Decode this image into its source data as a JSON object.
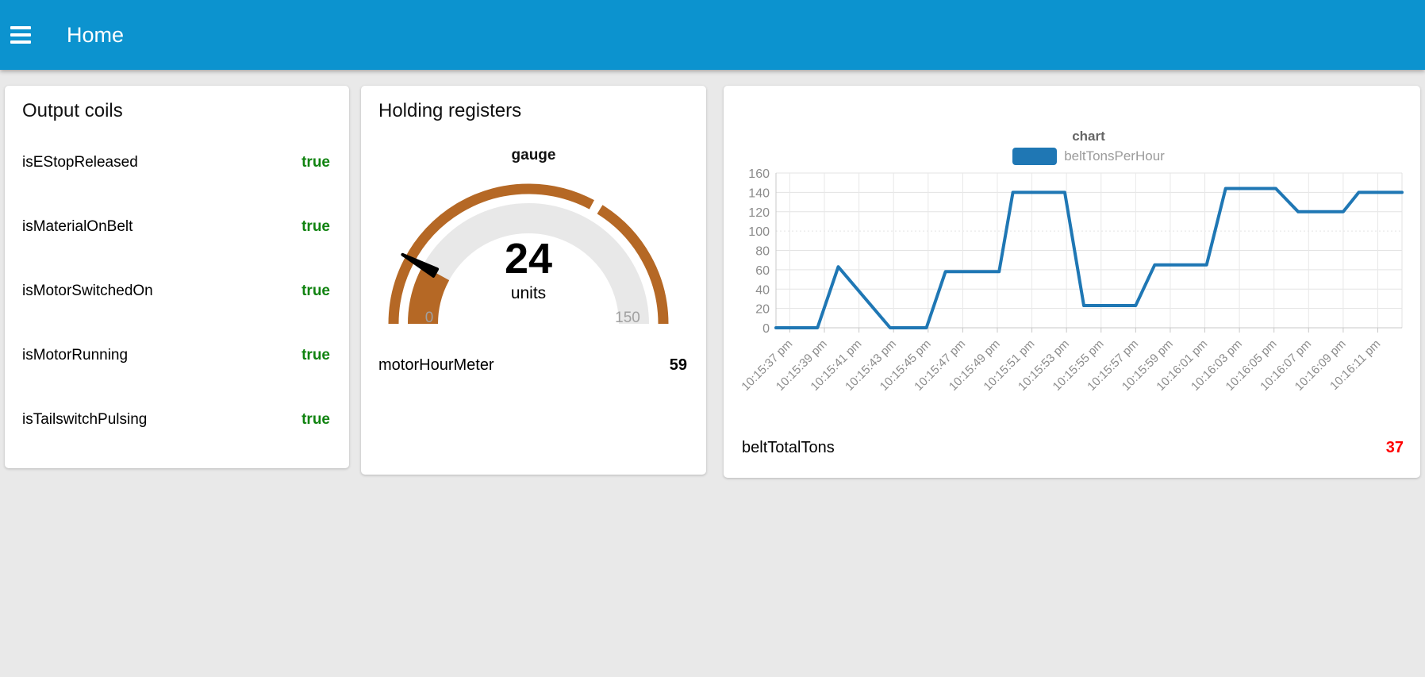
{
  "topbar": {
    "title": "Home",
    "color": "#0c93cf"
  },
  "cards": {
    "output_coils": {
      "title": "Output coils",
      "value_color": "#108310",
      "rows": [
        {
          "label": "isEStopReleased",
          "value": "true"
        },
        {
          "label": "isMaterialOnBelt",
          "value": "true"
        },
        {
          "label": "isMotorSwitchedOn",
          "value": "true"
        },
        {
          "label": "isMotorRunning",
          "value": "true"
        },
        {
          "label": "isTailswitchPulsing",
          "value": "true"
        }
      ]
    },
    "holding_registers": {
      "title": "Holding registers",
      "gauge": {
        "title": "gauge",
        "value": 24,
        "value_display": "24",
        "units": "units",
        "min": 0,
        "max": 150,
        "min_label": "0",
        "max_label": "150",
        "separator_value": 100,
        "arc_color": "#b56825",
        "track_color": "#e8e8e8",
        "needle_color": "#000000"
      },
      "rows": [
        {
          "label": "motorHourMeter",
          "value": "59"
        }
      ]
    },
    "chart_card": {
      "title": "chart",
      "legend": [
        {
          "label": "beltTonsPerHour",
          "color": "#1f77b4"
        }
      ],
      "rows": [
        {
          "label": "beltTotalTons",
          "value": "37",
          "value_color": "#ff0000"
        }
      ]
    }
  },
  "chart_data": {
    "type": "line",
    "title": "chart",
    "legend_position": "top",
    "grid": true,
    "ylim": [
      0,
      160
    ],
    "y_ticks": [
      0,
      20,
      40,
      60,
      80,
      100,
      120,
      140,
      160
    ],
    "xlim_seconds": [
      -0.8,
      35.4
    ],
    "x_ticks": [
      {
        "t": 0,
        "label": "10:15:37 pm"
      },
      {
        "t": 2,
        "label": "10:15:39 pm"
      },
      {
        "t": 4,
        "label": "10:15:41 pm"
      },
      {
        "t": 6,
        "label": "10:15:43 pm"
      },
      {
        "t": 8,
        "label": "10:15:45 pm"
      },
      {
        "t": 10,
        "label": "10:15:47 pm"
      },
      {
        "t": 12,
        "label": "10:15:49 pm"
      },
      {
        "t": 14,
        "label": "10:15:51 pm"
      },
      {
        "t": 16,
        "label": "10:15:53 pm"
      },
      {
        "t": 18,
        "label": "10:15:55 pm"
      },
      {
        "t": 20,
        "label": "10:15:57 pm"
      },
      {
        "t": 22,
        "label": "10:15:59 pm"
      },
      {
        "t": 24,
        "label": "10:16:01 pm"
      },
      {
        "t": 26,
        "label": "10:16:03 pm"
      },
      {
        "t": 28,
        "label": "10:16:05 pm"
      },
      {
        "t": 30,
        "label": "10:16:07 pm"
      },
      {
        "t": 32,
        "label": "10:16:09 pm"
      },
      {
        "t": 34,
        "label": "10:16:11 pm"
      }
    ],
    "series": [
      {
        "name": "beltTonsPerHour",
        "color": "#1f77b4",
        "points": [
          [
            -0.8,
            0
          ],
          [
            1.6,
            0
          ],
          [
            2.8,
            63
          ],
          [
            5.8,
            0
          ],
          [
            7.9,
            0
          ],
          [
            9.0,
            58
          ],
          [
            12.1,
            58
          ],
          [
            12.9,
            140
          ],
          [
            15.9,
            140
          ],
          [
            17.0,
            23
          ],
          [
            20.0,
            23
          ],
          [
            21.1,
            65
          ],
          [
            24.1,
            65
          ],
          [
            25.2,
            144
          ],
          [
            28.1,
            144
          ],
          [
            29.4,
            120
          ],
          [
            32.0,
            120
          ],
          [
            32.9,
            140
          ],
          [
            35.4,
            140
          ]
        ]
      }
    ]
  }
}
